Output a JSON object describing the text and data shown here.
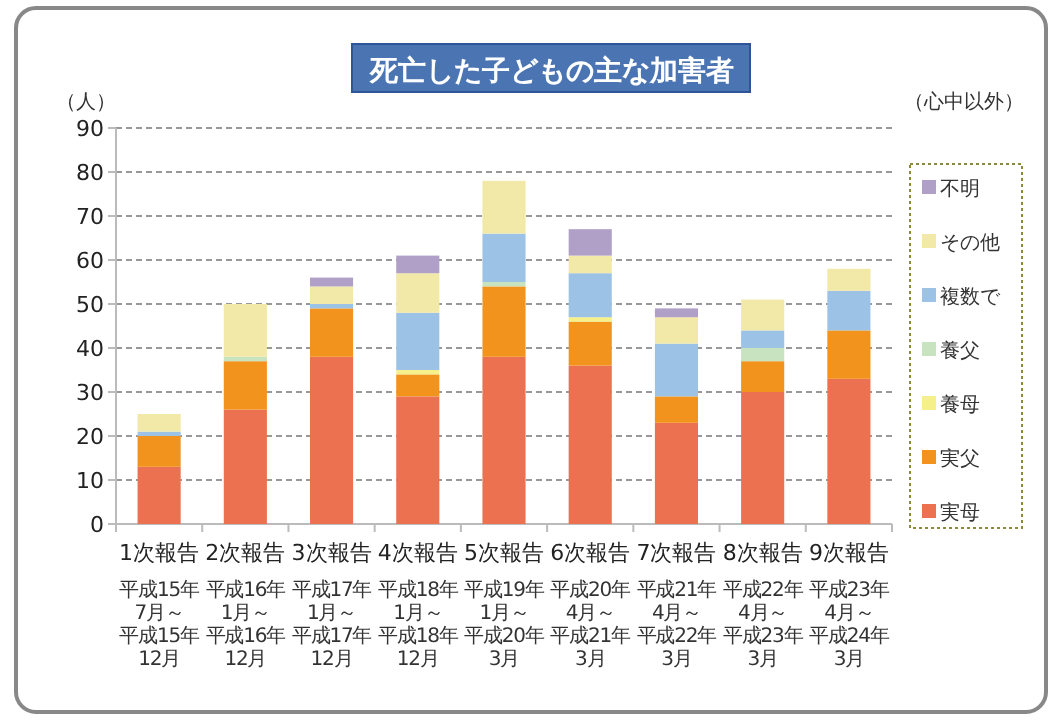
{
  "chart_data": {
    "type": "bar",
    "stacked": true,
    "title": "死亡した子どもの主な加害者",
    "ylabel": "（人）",
    "annotations": [
      "（心中以外）",
      "平成15年7月～平成15年12月",
      "平成16年1月～平成16年12月",
      "平成17年1月～平成17年12月",
      "平成18年1月～平成18年12月",
      "平成19年1月～平成20年3月",
      "平成20年4月～平成21年3月",
      "平成21年4月～平成22年3月",
      "平成22年4月～平成23年3月",
      "平成23年4月～平成24年3月"
    ],
    "categories": [
      "1次報告",
      "2次報告",
      "3次報告",
      "4次報告",
      "5次報告",
      "6次報告",
      "7次報告",
      "8次報告",
      "9次報告"
    ],
    "series": [
      {
        "name": "実母",
        "color": "#ec7150",
        "values": [
          13,
          26,
          38,
          29,
          38,
          36,
          23,
          30,
          33
        ]
      },
      {
        "name": "実父",
        "color": "#f2931e",
        "values": [
          7,
          11,
          11,
          5,
          16,
          10,
          6,
          7,
          11
        ]
      },
      {
        "name": "養母",
        "color": "#f5f08a",
        "values": [
          0,
          0,
          0,
          1,
          0,
          1,
          0,
          0,
          0
        ]
      },
      {
        "name": "養父",
        "color": "#c7e3c0",
        "values": [
          0,
          1,
          0,
          0,
          1,
          0,
          0,
          3,
          0
        ]
      },
      {
        "name": "複数で",
        "color": "#9cc3e6",
        "values": [
          1,
          0,
          1,
          13,
          11,
          10,
          12,
          4,
          9
        ]
      },
      {
        "name": "その他",
        "color": "#f2e8a8",
        "values": [
          4,
          12,
          4,
          9,
          12,
          4,
          6,
          7,
          5
        ]
      },
      {
        "name": "不明",
        "color": "#b09fc6",
        "values": [
          0,
          0,
          2,
          4,
          0,
          6,
          2,
          0,
          0
        ]
      }
    ],
    "ylim": [
      0,
      90
    ],
    "yticks": [
      0,
      10,
      20,
      30,
      40,
      50,
      60,
      70,
      80,
      90
    ],
    "grid": "y",
    "legend": "right"
  }
}
